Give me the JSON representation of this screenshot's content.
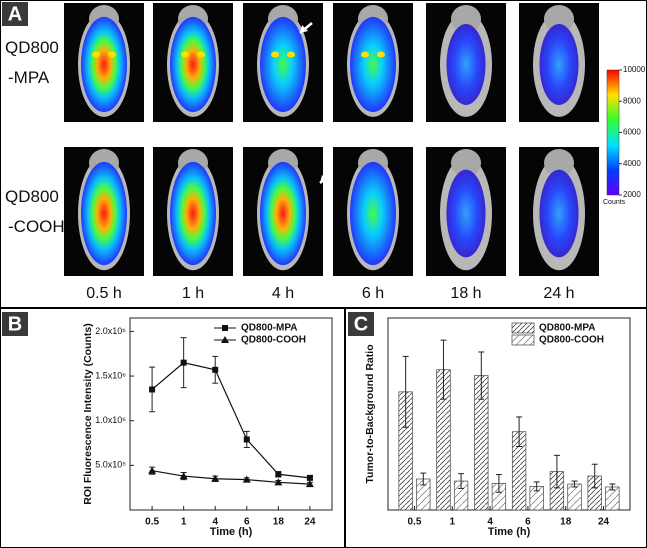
{
  "panels": [
    "A",
    "B",
    "C"
  ],
  "imaging": {
    "rows": [
      [
        "QD800",
        "-MPA"
      ],
      [
        "QD800",
        "-COOH"
      ]
    ],
    "times": [
      "0.5 h",
      "1 h",
      "4 h",
      "6 h",
      "18 h",
      "24 h"
    ],
    "colorbar": {
      "lim": [
        2000,
        10000
      ],
      "ticks": [
        10000,
        8000,
        6000,
        4000,
        2000
      ],
      "label": "Counts"
    }
  },
  "chart_data": [
    {
      "type": "line",
      "ylabel": "ROI Fluorescence Intensity (Counts)",
      "xlabel": "Time (h)",
      "categories": [
        "0.5",
        "1",
        "4",
        "6",
        "18",
        "24"
      ],
      "ylim": [
        0,
        2150000
      ],
      "yticks": [
        {
          "value": 500000,
          "label": "5.0x10⁵"
        },
        {
          "value": 1000000,
          "label": "1.0x10⁶"
        },
        {
          "value": 1500000,
          "label": "1.5x10⁶"
        },
        {
          "value": 2000000,
          "label": "2.0x10⁶"
        }
      ],
      "legend": "upper right",
      "series": [
        {
          "name": "QD800-MPA",
          "color": "#111111",
          "marker": "square",
          "values": [
            1350000,
            1650000,
            1570000,
            790000,
            400000,
            360000
          ],
          "errors": [
            250000,
            280000,
            150000,
            90000,
            30000,
            20000
          ]
        },
        {
          "name": "QD800-COOH",
          "color": "#111111",
          "marker": "triangle",
          "values": [
            440000,
            380000,
            350000,
            340000,
            310000,
            290000
          ],
          "errors": [
            40000,
            40000,
            30000,
            20000,
            20000,
            20000
          ]
        }
      ]
    },
    {
      "type": "bar",
      "ylabel": "Tumor-to-Background Ratio",
      "xlabel": "Time (h)",
      "categories": [
        "0.5",
        "1",
        "4",
        "6",
        "18",
        "24"
      ],
      "ylim": [
        0,
        6.5
      ],
      "hatch": true,
      "legend": "upper right",
      "series": [
        {
          "name": "QD800-MPA",
          "color": "#444444",
          "values": [
            4.0,
            4.75,
            4.55,
            2.65,
            1.3,
            1.15
          ],
          "errors": [
            1.2,
            1.0,
            0.8,
            0.5,
            0.55,
            0.4
          ]
        },
        {
          "name": "QD800-COOH",
          "color": "#888888",
          "values": [
            1.05,
            0.98,
            0.9,
            0.8,
            0.88,
            0.78
          ],
          "errors": [
            0.2,
            0.25,
            0.3,
            0.15,
            0.1,
            0.1
          ]
        }
      ]
    }
  ]
}
